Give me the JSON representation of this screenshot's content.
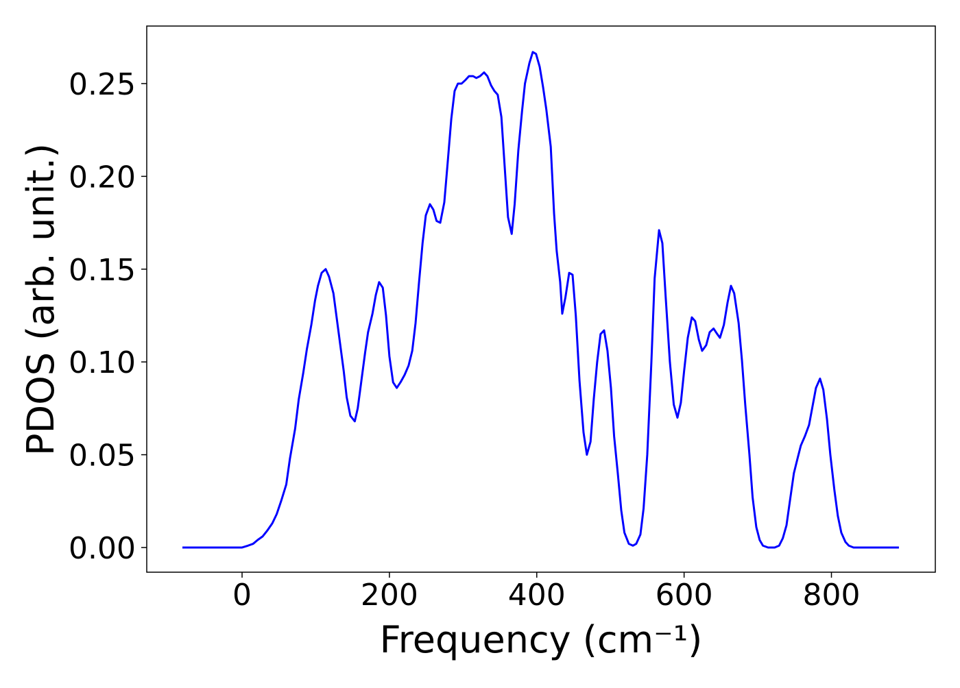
{
  "chart_data": {
    "type": "line",
    "xlabel": "Frequency (cm⁻¹)",
    "ylabel": "PDOS (arb. unit.)",
    "color": "#0000ff",
    "xlim": [
      -129.4,
      941
    ],
    "ylim": [
      -0.0133,
      0.281
    ],
    "xticks": [
      0,
      200,
      400,
      600,
      800
    ],
    "yticks": [
      {
        "value": 0,
        "label": "0.00"
      },
      0.05,
      {
        "value": 0.1,
        "label": "0.10"
      },
      0.15,
      {
        "value": 0.2,
        "label": "0.20"
      },
      0.25
    ],
    "x": [
      -81,
      -12,
      0,
      8,
      15,
      21,
      28,
      34,
      41,
      47,
      53,
      60,
      65,
      72,
      77,
      83,
      88,
      94,
      99,
      103,
      108,
      113.5,
      118,
      124,
      128,
      133,
      138,
      142,
      147,
      153,
      157,
      162,
      167,
      171,
      177,
      181.5,
      186,
      191,
      195.4,
      200,
      205,
      210,
      215,
      220.6,
      226,
      231,
      235.5,
      240,
      245,
      249.4,
      255,
      259.7,
      264,
      269,
      274.5,
      279,
      284,
      288.5,
      293,
      298,
      303.4,
      308,
      313.6,
      318,
      323,
      328.5,
      333,
      338,
      342.5,
      347,
      352,
      356.5,
      361,
      366,
      370,
      375,
      380,
      384,
      390,
      394.6,
      399,
      404,
      408.6,
      413,
      419,
      423.5,
      427,
      431.8,
      434.6,
      439,
      444,
      448.6,
      453,
      458,
      463.5,
      468,
      473,
      477.4,
      482,
      486.6,
      491.4,
      496,
      500.7,
      505,
      510,
      514.7,
      519,
      525,
      530.5,
      535,
      540.7,
      545,
      550,
      555.6,
      560,
      566,
      570.5,
      575,
      580.7,
      586,
      591,
      595.6,
      600,
      605,
      610.5,
      615,
      620,
      624.5,
      630,
      634.7,
      640,
      645,
      648.7,
      654,
      659,
      663.6,
      668,
      674,
      678.5,
      683,
      688.7,
      693,
      698,
      702.6,
      707,
      714,
      723,
      729,
      734,
      739,
      743.6,
      749,
      754,
      758.5,
      764,
      769.6,
      774.3,
      779,
      784.5,
      789,
      794,
      798.5,
      804,
      808.7,
      813.4,
      819,
      823.6,
      830,
      891.6
    ],
    "values": [
      0,
      0,
      0,
      0.001,
      0.002,
      0.004,
      0.006,
      0.009,
      0.013,
      0.018,
      0.025,
      0.034,
      0.048,
      0.064,
      0.08,
      0.094,
      0.107,
      0.12,
      0.133,
      0.141,
      0.148,
      0.15,
      0.146,
      0.137,
      0.125,
      0.11,
      0.095,
      0.081,
      0.071,
      0.068,
      0.075,
      0.09,
      0.105,
      0.116,
      0.126,
      0.136,
      0.143,
      0.14,
      0.125,
      0.103,
      0.089,
      0.086,
      0.089,
      0.093,
      0.098,
      0.106,
      0.121,
      0.142,
      0.164,
      0.179,
      0.185,
      0.182,
      0.176,
      0.175,
      0.186,
      0.207,
      0.231,
      0.246,
      0.25,
      0.25,
      0.252,
      0.254,
      0.254,
      0.253,
      0.254,
      0.256,
      0.254,
      0.249,
      0.246,
      0.244,
      0.232,
      0.205,
      0.178,
      0.169,
      0.185,
      0.214,
      0.235,
      0.25,
      0.261,
      0.267,
      0.266,
      0.259,
      0.248,
      0.236,
      0.216,
      0.18,
      0.16,
      0.143,
      0.126,
      0.135,
      0.148,
      0.147,
      0.125,
      0.09,
      0.062,
      0.05,
      0.057,
      0.08,
      0.1,
      0.115,
      0.117,
      0.106,
      0.086,
      0.06,
      0.04,
      0.02,
      0.008,
      0.002,
      0.001,
      0.002,
      0.007,
      0.021,
      0.05,
      0.1,
      0.145,
      0.171,
      0.164,
      0.135,
      0.1,
      0.077,
      0.07,
      0.078,
      0.095,
      0.113,
      0.124,
      0.122,
      0.112,
      0.106,
      0.109,
      0.116,
      0.118,
      0.115,
      0.113,
      0.12,
      0.132,
      0.141,
      0.137,
      0.121,
      0.101,
      0.077,
      0.05,
      0.027,
      0.011,
      0.004,
      0.001,
      0,
      0,
      0.001,
      0.005,
      0.012,
      0.025,
      0.04,
      0.048,
      0.055,
      0.06,
      0.066,
      0.076,
      0.086,
      0.091,
      0.085,
      0.069,
      0.05,
      0.031,
      0.017,
      0.008,
      0.003,
      0.001,
      0,
      0
    ]
  }
}
